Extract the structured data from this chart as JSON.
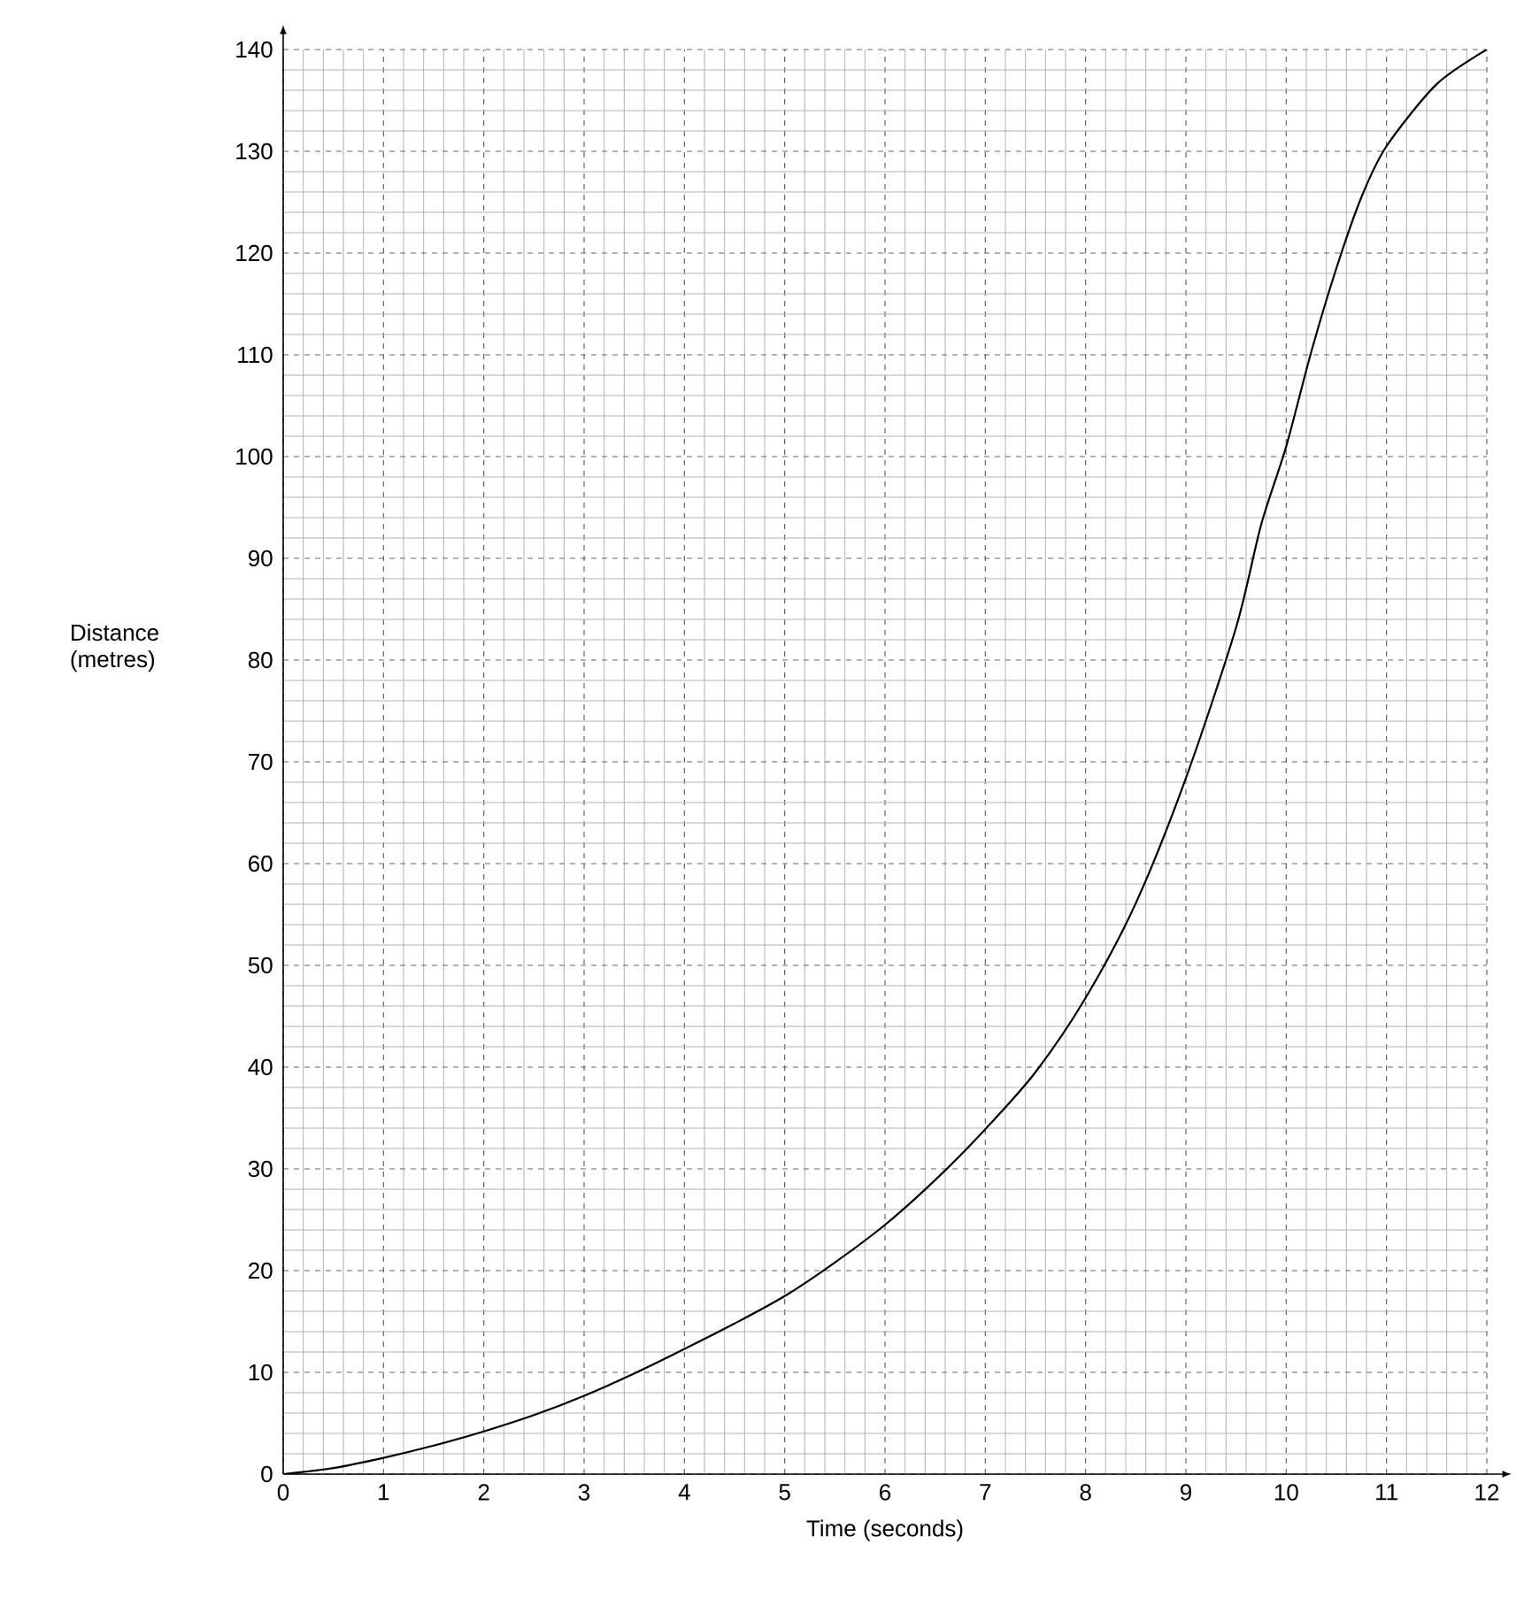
{
  "chart_data": {
    "type": "line",
    "xlabel": "Time (seconds)",
    "ylabel": "Distance (metres)",
    "x": [
      0,
      0.5,
      1,
      1.5,
      2,
      2.5,
      3,
      3.5,
      4,
      4.5,
      5,
      5.5,
      6,
      6.5,
      7,
      7.5,
      8,
      8.5,
      9,
      9.5,
      9.75,
      10,
      10.25,
      10.5,
      10.75,
      11,
      11.5,
      12
    ],
    "series": [
      {
        "color": "#000000",
        "values": [
          0,
          0.6,
          1.6,
          2.8,
          4.2,
          5.8,
          7.7,
          9.9,
          12.3,
          14.8,
          17.5,
          20.8,
          24.5,
          28.9,
          33.9,
          39.5,
          46.8,
          56.1,
          68.4,
          83.2,
          93.3,
          101,
          110.3,
          118.5,
          125.5,
          130.5,
          136.6,
          140
        ]
      }
    ],
    "xlim": [
      0,
      12
    ],
    "ylim": [
      0,
      140
    ],
    "xticks": [
      0,
      1,
      2,
      3,
      4,
      5,
      6,
      7,
      8,
      9,
      10,
      11,
      12
    ],
    "yticks": [
      0,
      10,
      20,
      30,
      40,
      50,
      60,
      70,
      80,
      90,
      100,
      110,
      120,
      130,
      140
    ],
    "grid": true
  }
}
